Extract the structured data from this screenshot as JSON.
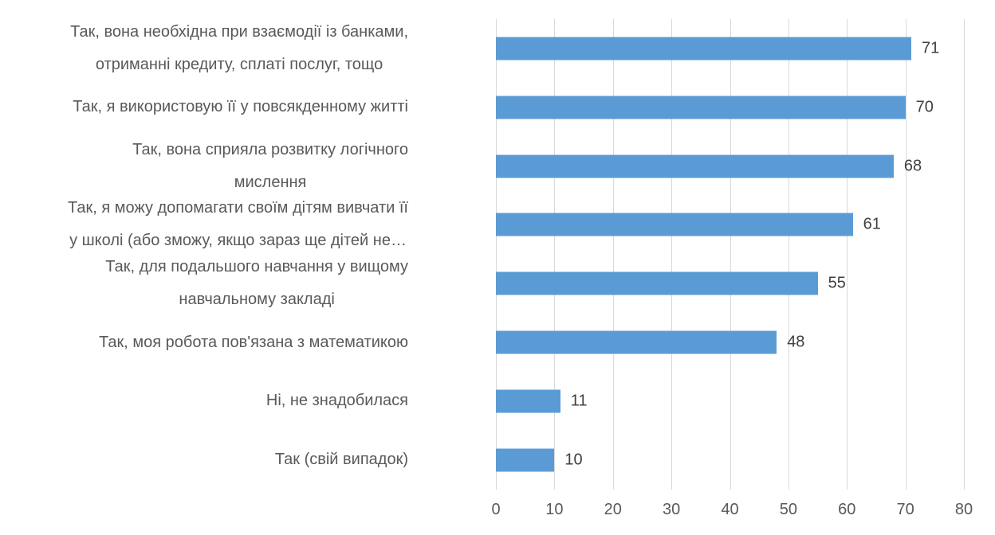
{
  "chart_data": {
    "type": "bar",
    "orientation": "horizontal",
    "title": "",
    "xlabel": "",
    "ylabel": "",
    "categories": [
      "Так, вона необхідна при взаємодії із банками,\nотриманні кредиту, сплаті послуг, тощо",
      "Так, я використовую її у повсякденному житті",
      "Так, вона сприяла розвитку логічного\nмислення",
      "Так, я можу допомагати своїм дітям вивчати її\nу школі (або зможу, якщо зараз ще дітей не…",
      "Так, для подальшого навчання у вищому\nнавчальному закладі",
      "Так, моя робота пов'язана з математикою",
      "Ні, не знадобилася",
      "Так (свій випадок)"
    ],
    "values": [
      71,
      70,
      68,
      61,
      55,
      48,
      11,
      10
    ],
    "value_labels": [
      "71",
      "70",
      "68",
      "61",
      "55",
      "48",
      "11",
      "10"
    ],
    "xlim": [
      0,
      80
    ],
    "xticks": [
      0,
      10,
      20,
      30,
      40,
      50,
      60,
      70,
      80
    ],
    "grid": "vertical",
    "legend_position": "none",
    "colors": {
      "bar": "#5B9BD5",
      "gridline": "#D9D9D9",
      "category_label": "#595959",
      "value_label": "#404040",
      "tick_label": "#595959",
      "background": "#FFFFFF"
    }
  }
}
